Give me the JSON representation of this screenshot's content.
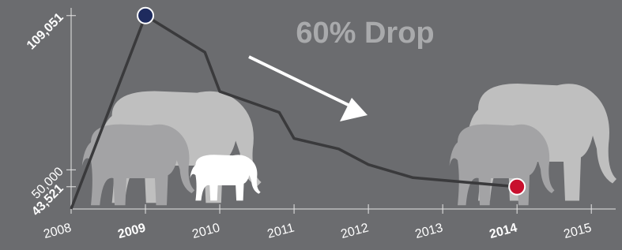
{
  "chart_data": {
    "type": "line",
    "title": "60% Drop",
    "series": [
      {
        "color": "#3a3a3c",
        "x": [
          2008,
          2009,
          2009.8,
          2010,
          2010.8,
          2011,
          2011.6,
          2012,
          2012.6,
          2014
        ],
        "values": [
          35000,
          109051,
          95000,
          80000,
          72000,
          62000,
          58000,
          52000,
          47000,
          43521
        ]
      }
    ],
    "markers": [
      {
        "x": 2009,
        "value": 109051,
        "color": "#1e2b5e"
      },
      {
        "x": 2014,
        "value": 43521,
        "color": "#c8102e"
      }
    ],
    "highlight_color": "#1f4e8c",
    "xlim": [
      2008,
      2015.2
    ],
    "xticks": [
      2008,
      2009,
      2010,
      2011,
      2012,
      2013,
      2014,
      2015
    ],
    "ylim": [
      35000,
      112000
    ],
    "yticks": [
      {
        "value": 43521,
        "label": "43,521"
      },
      {
        "value": 50000,
        "label": "50,000"
      },
      {
        "value": 109051,
        "label": "109,051"
      }
    ]
  }
}
